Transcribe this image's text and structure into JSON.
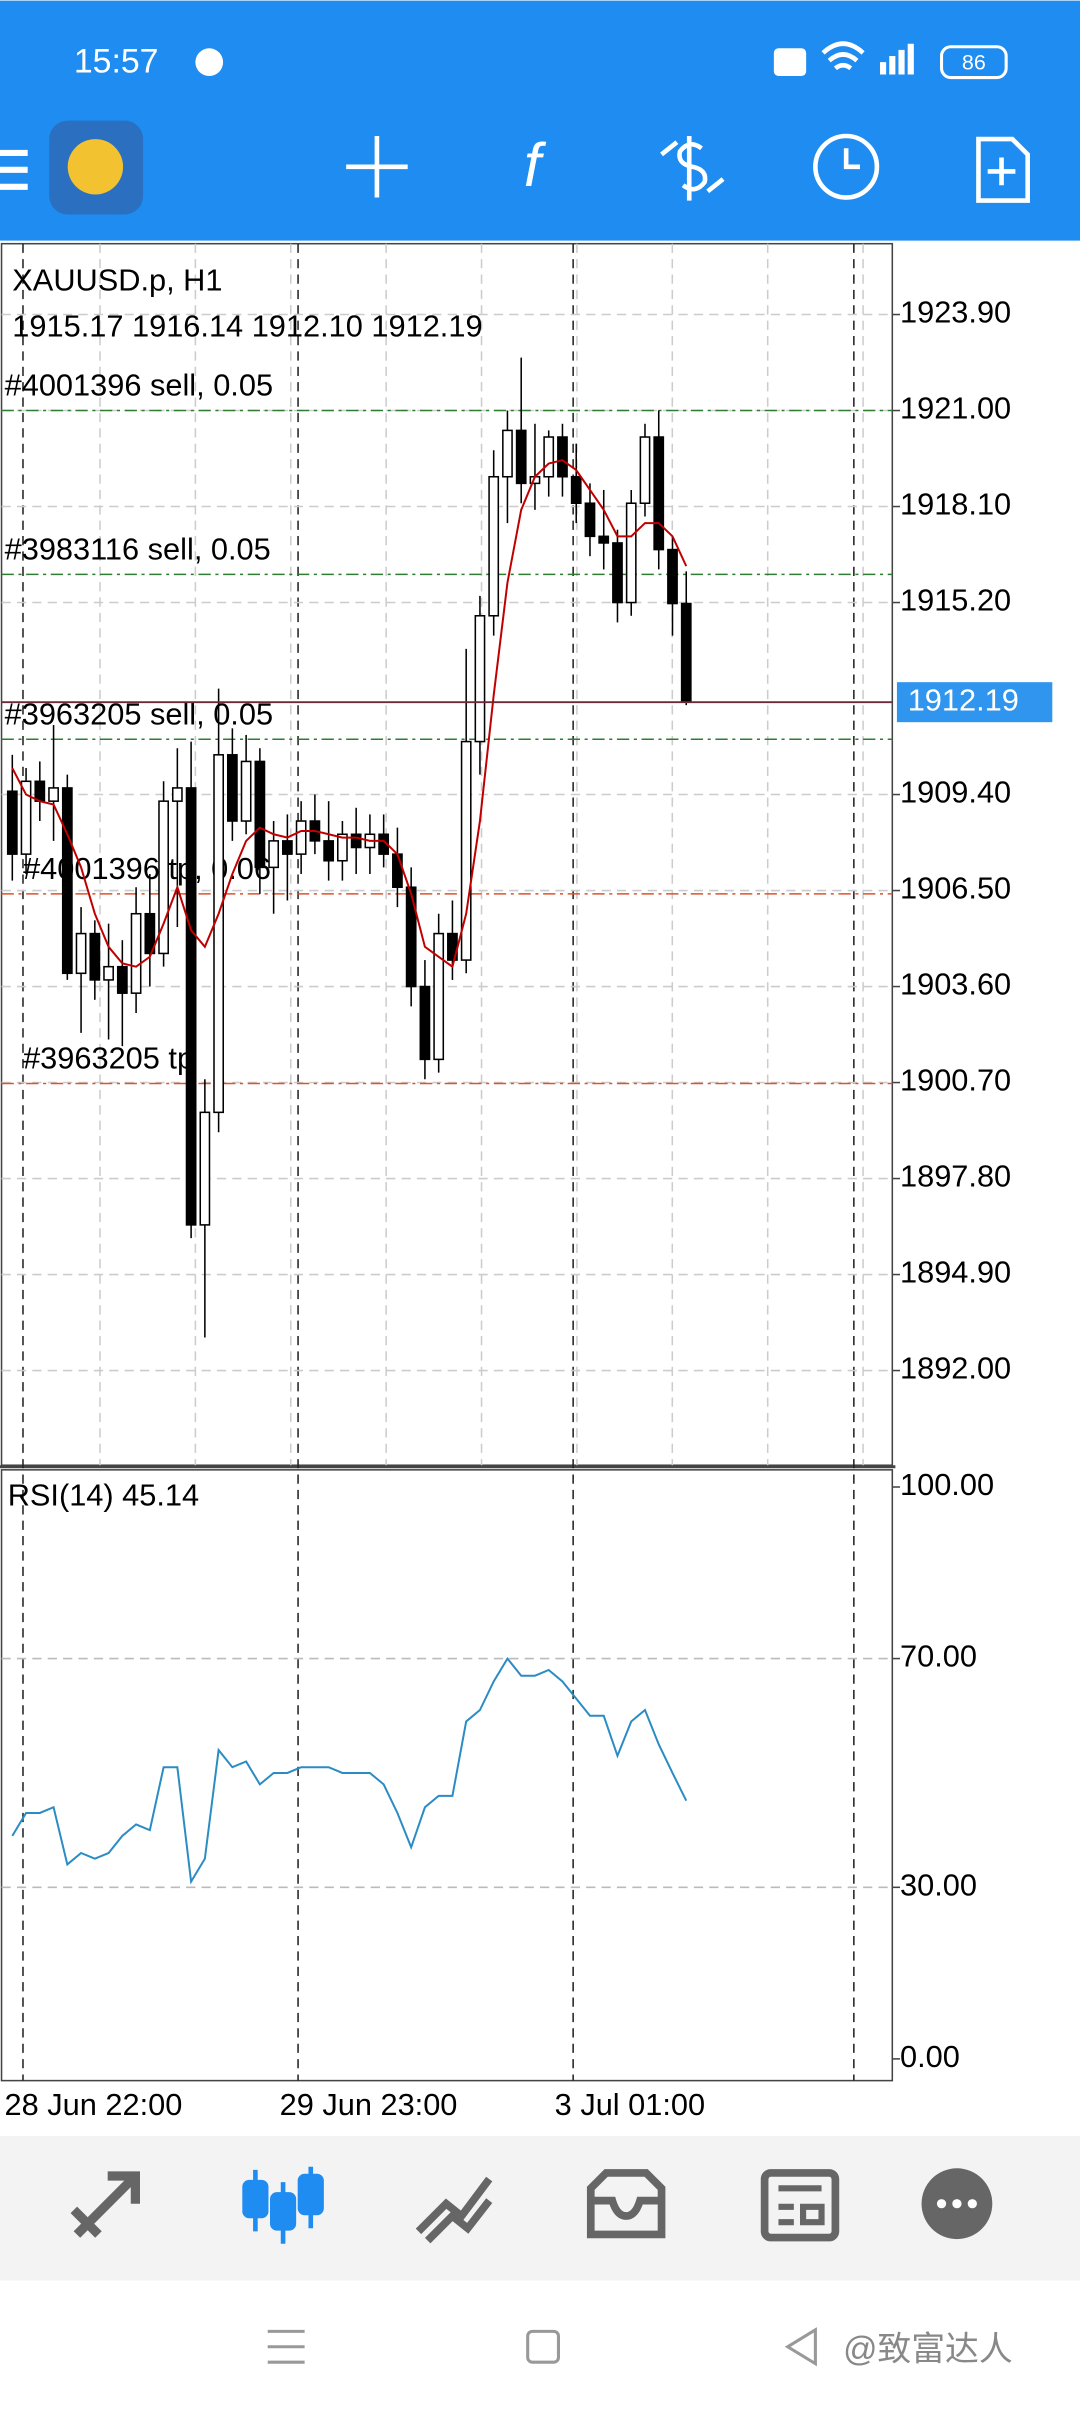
{
  "status_bar": {
    "time": "15:57",
    "battery": "86"
  },
  "chart_data": [
    {
      "type": "candlestick",
      "title": "XAUUSD.p, H1",
      "ohlc_label": "1915.17 1916.14 1912.10 1912.19",
      "categories": [
        null,
        "28 Jun 22:00",
        null,
        null,
        null,
        null,
        null,
        null,
        null,
        null,
        null,
        null,
        null,
        null,
        null,
        null,
        null,
        null,
        null,
        null,
        null,
        "29 Jun 23:00",
        null,
        null,
        null,
        null,
        null,
        null,
        null,
        null,
        null,
        null,
        null,
        null,
        null,
        null,
        null,
        null,
        null,
        null,
        null,
        "3 Jul 01:00",
        null,
        null,
        null,
        null,
        null,
        null,
        null,
        null
      ],
      "open": [
        1909.5,
        1907.6,
        1909.8,
        1909.2,
        1909.6,
        1904.0,
        1905.2,
        1903.8,
        1904.2,
        1903.4,
        1905.8,
        1904.6,
        1909.2,
        1909.6,
        1896.4,
        1899.8,
        1910.6,
        1908.6,
        1910.4,
        1907.2,
        1908.0,
        1907.6,
        1908.6,
        1908.0,
        1907.4,
        1908.2,
        1907.8,
        1908.2,
        1907.6,
        1906.6,
        1903.6,
        1901.4,
        1905.2,
        1904.4,
        1911.0,
        1914.8,
        1919.0,
        1920.4,
        1918.8,
        1919.0,
        1920.2,
        1919.0,
        1918.2,
        1917.2,
        1917.0,
        1915.2,
        1918.2,
        1920.2,
        1916.8,
        1915.17
      ],
      "high": [
        1910.6,
        1910.2,
        1910.4,
        1911.5,
        1910.0,
        1906.0,
        1905.6,
        1905.5,
        1905.0,
        1906.6,
        1907.0,
        1909.8,
        1910.8,
        1911.0,
        1900.8,
        1912.6,
        1911.4,
        1911.2,
        1910.8,
        1908.6,
        1908.8,
        1909.2,
        1909.4,
        1909.2,
        1908.6,
        1909.0,
        1908.8,
        1908.8,
        1908.4,
        1907.2,
        1904.4,
        1905.8,
        1906.2,
        1913.8,
        1915.4,
        1919.8,
        1921.0,
        1922.6,
        1920.6,
        1920.4,
        1920.6,
        1920.0,
        1918.8,
        1918.6,
        1917.4,
        1918.6,
        1920.6,
        1921.0,
        1917.2,
        1916.14
      ],
      "low": [
        1906.8,
        1907.0,
        1908.6,
        1908.0,
        1903.8,
        1902.2,
        1903.2,
        1902.0,
        1901.8,
        1902.8,
        1903.6,
        1904.2,
        1905.4,
        1896.0,
        1893.0,
        1899.2,
        1908.0,
        1908.2,
        1906.4,
        1905.8,
        1906.2,
        1907.0,
        1907.6,
        1906.8,
        1906.8,
        1907.0,
        1907.0,
        1907.2,
        1906.0,
        1903.0,
        1900.8,
        1901.0,
        1903.8,
        1904.0,
        1910.0,
        1914.2,
        1917.6,
        1918.2,
        1918.0,
        1918.4,
        1918.4,
        1917.6,
        1916.6,
        1916.2,
        1914.6,
        1914.8,
        1917.8,
        1916.2,
        1914.2,
        1912.1
      ],
      "close": [
        1907.6,
        1909.8,
        1909.2,
        1909.6,
        1904.0,
        1905.2,
        1903.8,
        1904.2,
        1903.4,
        1905.8,
        1904.6,
        1909.2,
        1909.6,
        1896.4,
        1899.8,
        1910.6,
        1908.6,
        1910.4,
        1907.2,
        1908.0,
        1907.6,
        1908.6,
        1908.0,
        1907.4,
        1908.2,
        1907.8,
        1908.2,
        1907.6,
        1906.6,
        1903.6,
        1901.4,
        1905.2,
        1904.4,
        1911.0,
        1914.8,
        1919.0,
        1920.4,
        1918.8,
        1919.0,
        1920.2,
        1919.0,
        1918.2,
        1917.2,
        1917.0,
        1915.2,
        1918.2,
        1920.2,
        1916.8,
        1915.17,
        1912.19
      ],
      "moving_average": {
        "color": "#c00000",
        "values": [
          1910.2,
          1909.4,
          1909.2,
          1909.1,
          1908.2,
          1907.2,
          1905.8,
          1904.8,
          1904.3,
          1904.2,
          1904.5,
          1905.5,
          1906.6,
          1905.3,
          1904.8,
          1905.8,
          1907.0,
          1908.0,
          1908.4,
          1908.2,
          1908.1,
          1908.3,
          1908.3,
          1908.2,
          1908.1,
          1908.1,
          1908.0,
          1908.0,
          1907.6,
          1906.4,
          1904.8,
          1904.5,
          1904.2,
          1905.8,
          1908.6,
          1912.4,
          1915.8,
          1918.0,
          1919.0,
          1919.4,
          1919.5,
          1919.2,
          1918.6,
          1918.0,
          1917.2,
          1917.2,
          1917.6,
          1917.6,
          1917.2,
          1916.3
        ]
      },
      "current_price": 1912.19,
      "orders": [
        {
          "label": "#4001396 sell, 0.05",
          "price": 1921.0,
          "color": "#2e7d32"
        },
        {
          "label": "#3983116 sell, 0.05",
          "price": 1916.05,
          "color": "#2e7d32"
        },
        {
          "label": "#3963205 sell, 0.05",
          "price": 1911.07,
          "color": "#2e7d32"
        },
        {
          "label": "#4001396 tp, 0.06",
          "price": 1906.4,
          "color": "#e0522a"
        },
        {
          "label": "#3963205 tp",
          "price": 1900.67,
          "color": "#e0522a"
        }
      ],
      "ylim": [
        1889.14,
        1926.04
      ],
      "yticks": [
        {
          "value": 1892.0,
          "label": "1892.00"
        },
        {
          "value": 1894.9,
          "label": "1894.90"
        },
        {
          "value": 1897.8,
          "label": "1897.80"
        },
        {
          "value": 1900.7,
          "label": "1900.70"
        },
        {
          "value": 1903.6,
          "label": "1903.60"
        },
        {
          "value": 1906.5,
          "label": "1906.50"
        },
        {
          "value": 1909.4,
          "label": "1909.40"
        },
        {
          "value": 1915.2,
          "label": "1915.20"
        },
        {
          "value": 1918.1,
          "label": "1918.10"
        },
        {
          "value": 1921.0,
          "label": "1921.00"
        },
        {
          "value": 1923.9,
          "label": "1923.90"
        }
      ]
    },
    {
      "type": "line",
      "title": "RSI(14) 45.14",
      "color": "#2b8cc4",
      "values": [
        39,
        43,
        43,
        44,
        34,
        36,
        35,
        36,
        39,
        41,
        40,
        51,
        51,
        31,
        35,
        54,
        51,
        52,
        48,
        50,
        50,
        51,
        51,
        51,
        50,
        50,
        50,
        48,
        43,
        37,
        44,
        46,
        46,
        59,
        61,
        66,
        70,
        67,
        67,
        68,
        66,
        63,
        60,
        60,
        53,
        59,
        61,
        55,
        50,
        45.14
      ],
      "ylim": [
        -3.8,
        103
      ],
      "yticks": [
        {
          "value": 0,
          "label": "0.00"
        },
        {
          "value": 30,
          "label": "30.00"
        },
        {
          "value": 70,
          "label": "70.00"
        },
        {
          "value": 100,
          "label": "100.00"
        }
      ]
    }
  ],
  "watermark": "@致富达人"
}
